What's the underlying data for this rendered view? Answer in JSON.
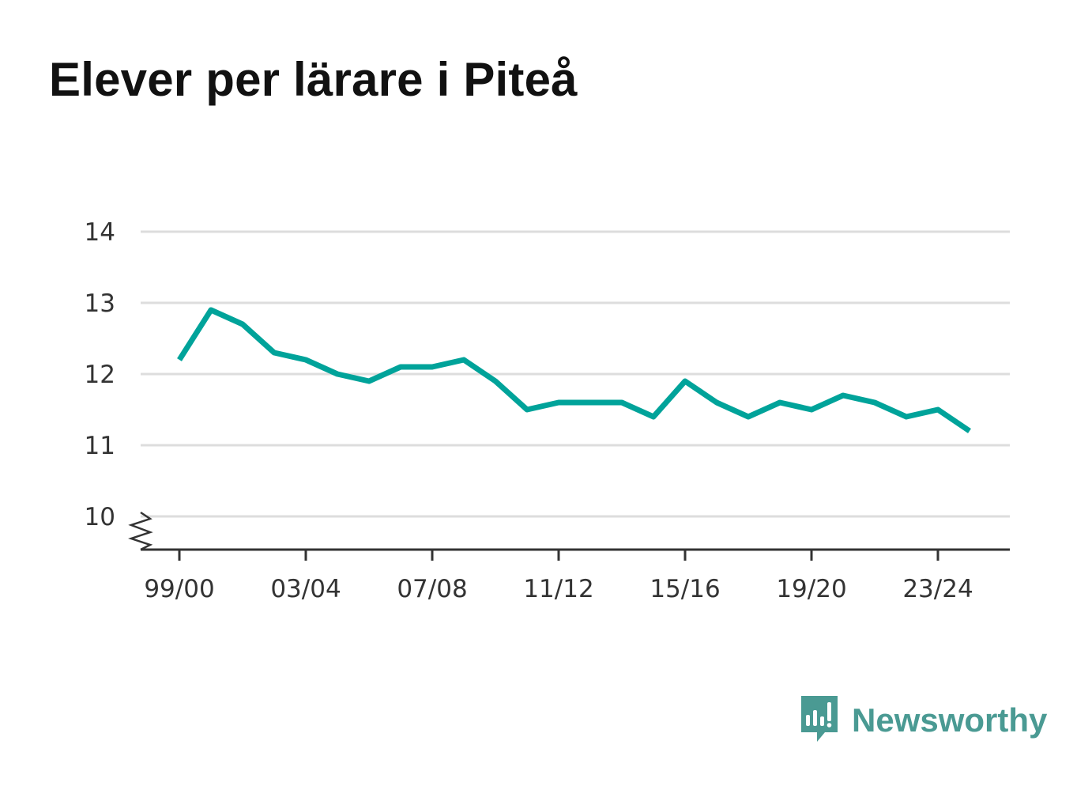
{
  "title": "Elever per lärare i Piteå",
  "brand": {
    "name": "Newsworthy",
    "icon": "bar-chart-speech-bubble-icon",
    "color": "#4a9a93"
  },
  "colors": {
    "line": "#00a39a",
    "grid": "#dddddd",
    "axis": "#333333"
  },
  "chart_data": {
    "type": "line",
    "title": "Elever per lärare i Piteå",
    "xlabel": "",
    "ylabel": "",
    "x": [
      "99/00",
      "00/01",
      "01/02",
      "02/03",
      "03/04",
      "04/05",
      "05/06",
      "06/07",
      "07/08",
      "08/09",
      "09/10",
      "10/11",
      "11/12",
      "12/13",
      "13/14",
      "14/15",
      "15/16",
      "16/17",
      "17/18",
      "18/19",
      "19/20",
      "20/21",
      "21/22",
      "22/23",
      "23/24",
      "24/25"
    ],
    "x_tick_labels": [
      "99/00",
      "03/04",
      "07/08",
      "11/12",
      "15/16",
      "19/20",
      "23/24"
    ],
    "y_ticks": [
      10,
      11,
      12,
      13,
      14
    ],
    "ylim": [
      10,
      14
    ],
    "y_axis_break": true,
    "grid": true,
    "series": [
      {
        "values": [
          12.2,
          12.9,
          12.7,
          12.3,
          12.2,
          12.0,
          11.9,
          12.1,
          12.1,
          12.2,
          11.9,
          11.5,
          11.6,
          11.6,
          11.6,
          11.4,
          11.9,
          11.6,
          11.4,
          11.6,
          11.5,
          11.7,
          11.6,
          11.4,
          11.5,
          11.2
        ]
      }
    ]
  }
}
